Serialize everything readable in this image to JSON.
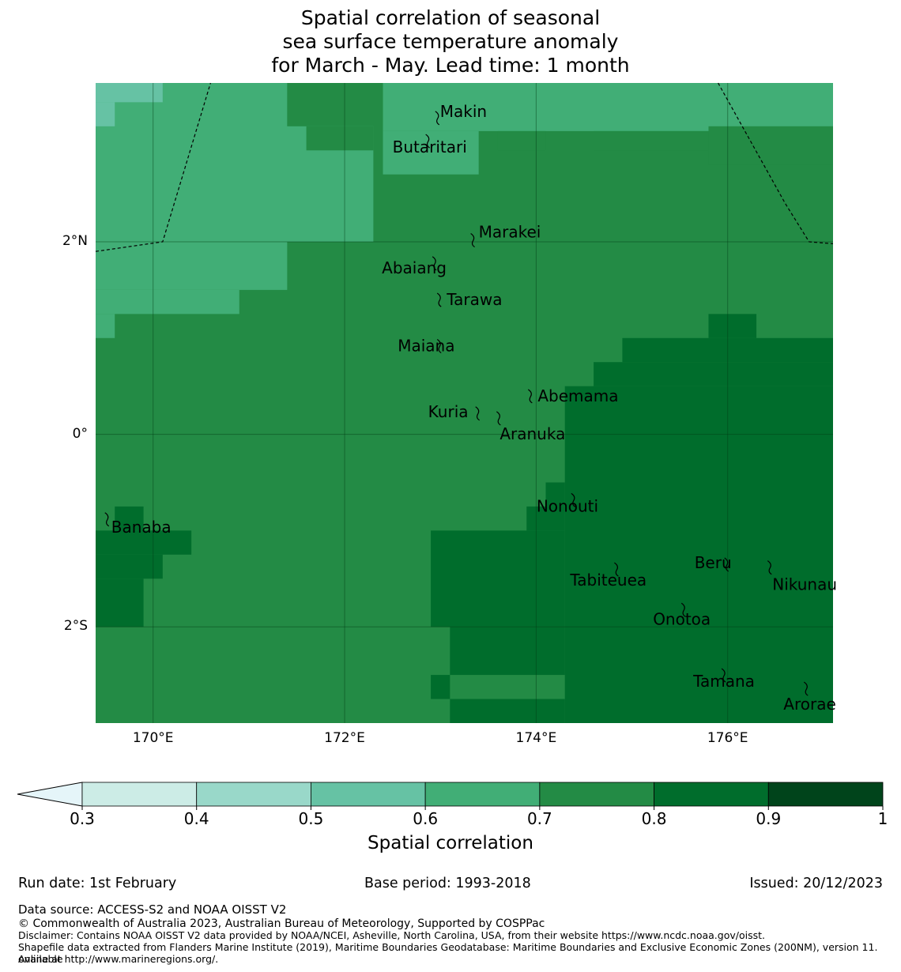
{
  "title": {
    "line1": "Spatial correlation of seasonal",
    "line2": "sea surface temperature anomaly",
    "line3": "for March - May. Lead time: 1 month"
  },
  "map": {
    "lon_range": [
      169.4,
      177.1
    ],
    "lat_range": [
      -3.0,
      3.65
    ],
    "lon_ticks": [
      {
        "value": 170,
        "label": "170°E"
      },
      {
        "value": 172,
        "label": "172°E"
      },
      {
        "value": 174,
        "label": "174°E"
      },
      {
        "value": 176,
        "label": "176°E"
      }
    ],
    "lat_ticks": [
      {
        "value": 2,
        "label": "2°N"
      },
      {
        "value": 0,
        "label": "0°"
      },
      {
        "value": -2,
        "label": "2°S"
      }
    ],
    "background_class": "0.7-0.8",
    "regions": [
      {
        "class": "0.6-0.7",
        "cells": [
          [
            169.4,
            2.0,
            172.3,
            3.65
          ],
          [
            169.4,
            1.5,
            171.4,
            2.0
          ],
          [
            169.4,
            1.25,
            170.9,
            1.5
          ],
          [
            169.4,
            1.0,
            169.6,
            1.25
          ],
          [
            172.4,
            3.15,
            177.1,
            3.65
          ],
          [
            172.4,
            2.7,
            173.4,
            3.15
          ]
        ]
      },
      {
        "class": "0.5-0.6",
        "cells": [
          [
            169.4,
            3.45,
            170.1,
            3.65
          ],
          [
            169.4,
            3.2,
            169.6,
            3.45
          ]
        ]
      },
      {
        "class": "0.7-0.8",
        "cells": [
          [
            171.4,
            3.2,
            172.4,
            3.65
          ],
          [
            171.6,
            2.95,
            172.3,
            3.2
          ],
          [
            173.6,
            2.95,
            174.1,
            3.15
          ],
          [
            174.6,
            2.95,
            175.8,
            3.15
          ],
          [
            175.8,
            2.8,
            177.1,
            3.2
          ]
        ]
      },
      {
        "class": "0.8-0.9",
        "cells": [
          [
            174.3,
            -3.0,
            177.1,
            0.5
          ],
          [
            174.6,
            0.5,
            177.1,
            0.75
          ],
          [
            174.9,
            0.75,
            177.1,
            1.0
          ],
          [
            175.8,
            1.0,
            176.3,
            1.25
          ],
          [
            172.9,
            -2.0,
            174.3,
            -1.0
          ],
          [
            173.9,
            -1.0,
            174.3,
            -0.75
          ],
          [
            174.1,
            -0.75,
            174.3,
            -0.5
          ],
          [
            173.1,
            -2.5,
            174.3,
            -2.0
          ],
          [
            172.9,
            -2.75,
            173.1,
            -2.5
          ],
          [
            173.1,
            -3.0,
            174.3,
            -2.75
          ],
          [
            169.4,
            -2.0,
            169.9,
            -1.5
          ],
          [
            169.4,
            -1.5,
            170.1,
            -1.25
          ],
          [
            169.4,
            -1.25,
            170.4,
            -1.0
          ],
          [
            169.6,
            -1.0,
            169.9,
            -0.75
          ]
        ]
      }
    ],
    "eez_lines": [
      [
        [
          169.4,
          1.9
        ],
        [
          170.1,
          2.0
        ],
        [
          170.6,
          3.65
        ]
      ],
      [
        [
          175.9,
          3.65
        ],
        [
          176.6,
          2.4
        ],
        [
          176.85,
          2.0
        ],
        [
          177.1,
          1.98
        ]
      ]
    ],
    "islands": [
      {
        "name": "Makin",
        "lon": 172.98,
        "lat": 3.29,
        "label_dx": 2,
        "label_dy": -8
      },
      {
        "name": "Butaritari",
        "lon": 172.88,
        "lat": 3.05,
        "label_dx": -46,
        "label_dy": 8
      },
      {
        "name": "Marakei",
        "lon": 173.35,
        "lat": 2.02,
        "label_dx": 6,
        "label_dy": -10
      },
      {
        "name": "Abaiang",
        "lon": 172.95,
        "lat": 1.78,
        "label_dx": -68,
        "label_dy": 6
      },
      {
        "name": "Tarawa",
        "lon": 173.0,
        "lat": 1.4,
        "label_dx": 8,
        "label_dy": 0
      },
      {
        "name": "Maiana",
        "lon": 173.0,
        "lat": 0.92,
        "label_dx": -54,
        "label_dy": 0
      },
      {
        "name": "Abemama",
        "lon": 173.95,
        "lat": 0.4,
        "label_dx": 8,
        "label_dy": 0
      },
      {
        "name": "Kuria",
        "lon": 173.4,
        "lat": 0.22,
        "label_dx": -64,
        "label_dy": -2
      },
      {
        "name": "Aranuka",
        "lon": 173.62,
        "lat": 0.17,
        "label_dx": 0,
        "label_dy": 20
      },
      {
        "name": "Nonouti",
        "lon": 174.4,
        "lat": -0.68,
        "label_dx": -48,
        "label_dy": 8
      },
      {
        "name": "Banaba",
        "lon": 169.53,
        "lat": -0.88,
        "label_dx": 4,
        "label_dy": 10
      },
      {
        "name": "Tabiteuea",
        "lon": 174.85,
        "lat": -1.4,
        "label_dx": -60,
        "label_dy": 14
      },
      {
        "name": "Beru",
        "lon": 176.0,
        "lat": -1.35,
        "label_dx": -42,
        "label_dy": -2
      },
      {
        "name": "Nikunau",
        "lon": 176.45,
        "lat": -1.38,
        "label_dx": 2,
        "label_dy": 22
      },
      {
        "name": "Onotoa",
        "lon": 175.55,
        "lat": -1.82,
        "label_dx": -40,
        "label_dy": 12
      },
      {
        "name": "Tamana",
        "lon": 175.97,
        "lat": -2.5,
        "label_dx": -40,
        "label_dy": 8
      },
      {
        "name": "Arorae",
        "lon": 176.83,
        "lat": -2.64,
        "label_dx": -30,
        "label_dy": 20
      }
    ]
  },
  "colorbar": {
    "title": "Spatial correlation",
    "bins": [
      {
        "from": 0.3,
        "to": 0.4,
        "color": "#ccece6"
      },
      {
        "from": 0.4,
        "to": 0.5,
        "color": "#99d8c9"
      },
      {
        "from": 0.5,
        "to": 0.6,
        "color": "#66c2a4"
      },
      {
        "from": 0.6,
        "to": 0.7,
        "color": "#41ae76"
      },
      {
        "from": 0.7,
        "to": 0.8,
        "color": "#238b45"
      },
      {
        "from": 0.8,
        "to": 0.9,
        "color": "#006d2c"
      },
      {
        "from": 0.9,
        "to": 1.0,
        "color": "#00441b"
      }
    ],
    "under_color": "#e5f5f9",
    "ticks": [
      "0.3",
      "0.4",
      "0.5",
      "0.6",
      "0.7",
      "0.8",
      "0.9",
      "1"
    ]
  },
  "footer": {
    "run_date": "Run date: 1st February",
    "base_period": "Base period: 1993-2018",
    "issued": "Issued: 20/12/2023",
    "data_source": "Data source: ACCESS-S2 and NOAA OISST V2",
    "copyright": "© Commonwealth of Australia 2023, Australian Bureau of Meteorology, Supported by COSPPac",
    "disclaimer": "Disclaimer: Contains NOAA OISST V2 data provided by NOAA/NCEI, Asheville, North Carolina, USA, from their website https://www.ncdc.noaa.gov/oisst.",
    "shapefile1": "Shapefile data extracted from Flanders Marine Institute (2019), Maritime Boundaries Geodatabase: Maritime Boundaries and Exclusive Economic Zones (200NM), version 11. Available",
    "shapefile2": "online at http://www.marineregions.org/."
  }
}
